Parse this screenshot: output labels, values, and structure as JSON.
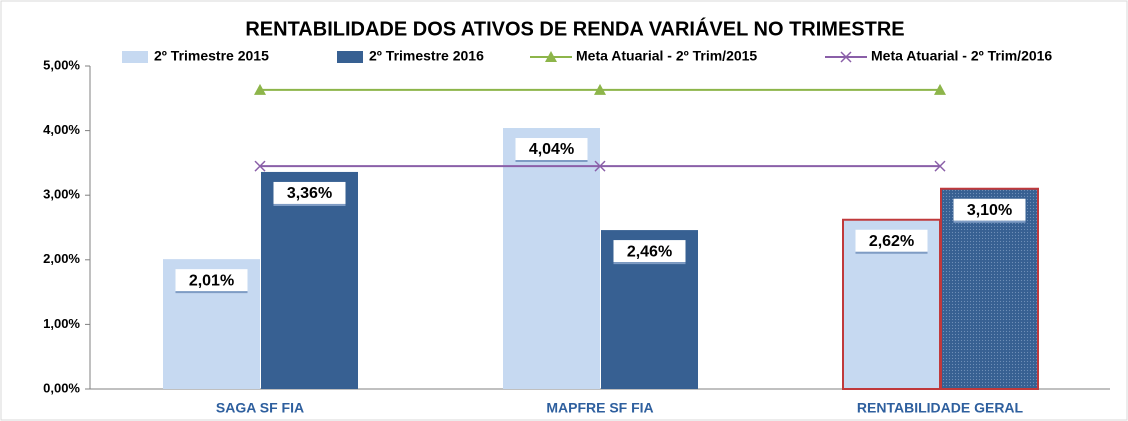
{
  "chart_data": {
    "type": "bar",
    "title": "RENTABILIDADE DOS ATIVOS DE RENDA VARIÁVEL NO TRIMESTRE",
    "categories": [
      "SAGA SF FIA",
      "MAPFRE SF FIA",
      "RENTABILIDADE GERAL"
    ],
    "series": [
      {
        "name": "2º Trimestre 2015",
        "type": "bar",
        "color": "#c6d9f1",
        "values": [
          2.01,
          4.04,
          2.62
        ],
        "value_labels": [
          "2,01%",
          "4,04%",
          "2,62%"
        ]
      },
      {
        "name": "2º Trimestre 2016",
        "type": "bar",
        "color": "#376092",
        "values": [
          3.36,
          2.46,
          3.1
        ],
        "value_labels": [
          "3,36%",
          "2,46%",
          "3,10%"
        ]
      },
      {
        "name": "Meta Atuarial - 2º Trim/2015",
        "type": "line",
        "marker": "triangle",
        "color": "#8db54a",
        "values": [
          4.63,
          4.63,
          4.63
        ]
      },
      {
        "name": "Meta Atuarial - 2º Trim/2016",
        "type": "line",
        "marker": "x",
        "color": "#8a5fa8",
        "values": [
          3.45,
          3.45,
          3.45
        ]
      }
    ],
    "outline": [
      null,
      null,
      "#c0393b"
    ],
    "ylim": [
      0,
      5
    ],
    "yticks": [
      {
        "value": 0,
        "label": "0,00%"
      },
      {
        "value": 1,
        "label": "1,00%"
      },
      {
        "value": 2,
        "label": "2,00%"
      },
      {
        "value": 3,
        "label": "3,00%"
      },
      {
        "value": 4,
        "label": "4,00%"
      },
      {
        "value": 5,
        "label": "5,00%"
      }
    ],
    "grid": false
  }
}
